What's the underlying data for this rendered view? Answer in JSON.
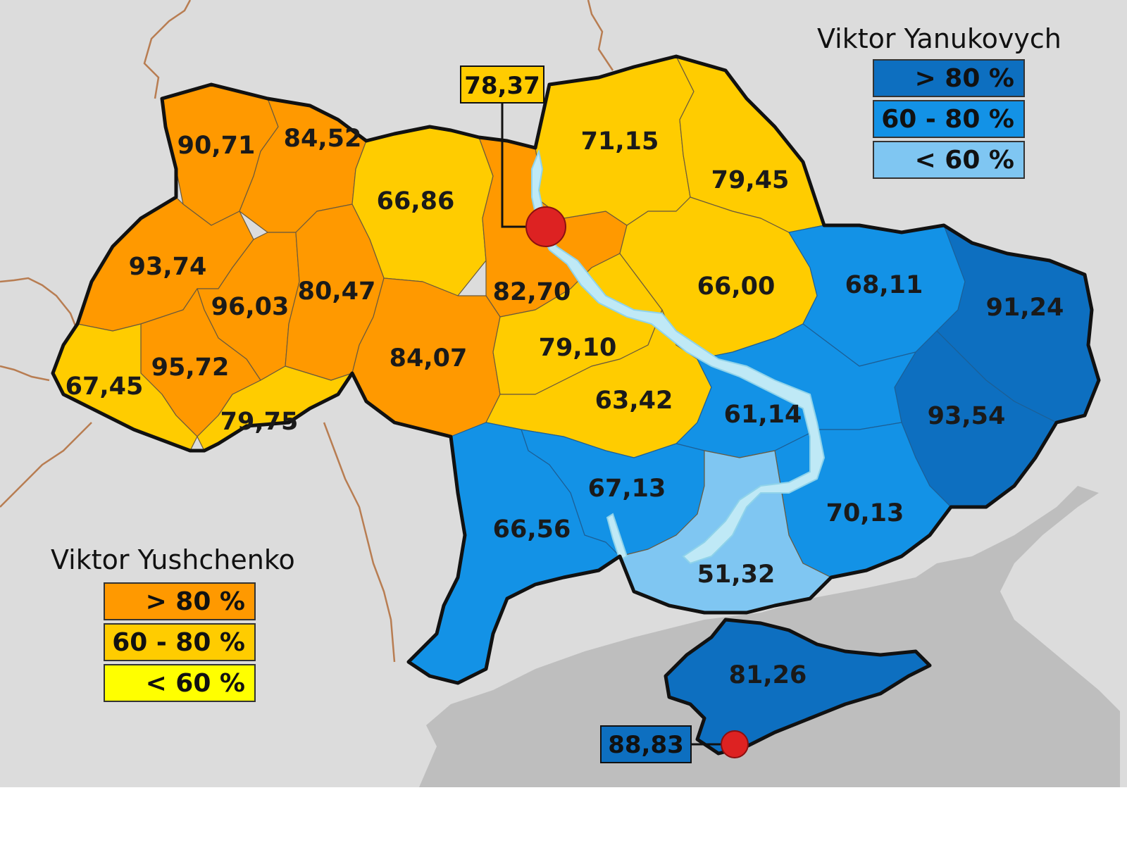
{
  "colors": {
    "background_land": "#dcdcdc",
    "sea": "#bebebe",
    "white_bottom": "#ffffff",
    "yushchenko_gt80": "#ff9900",
    "yushchenko_60_80": "#ffcc00",
    "yushchenko_lt60": "#ffff00",
    "yanukovych_gt80": "#0d6fc0",
    "yanukovych_60_80": "#1392e6",
    "yanukovych_lt60": "#7fc6f2",
    "capital_marker": "#dd2222"
  },
  "legend_yanukovych": {
    "title": "Viktor Yanukovych",
    "items": [
      {
        "label": "> 80 %",
        "color_key": "yanukovych_gt80"
      },
      {
        "label": "60 - 80 %",
        "color_key": "yanukovych_60_80"
      },
      {
        "label": "< 60 %",
        "color_key": "yanukovych_lt60"
      }
    ]
  },
  "legend_yushchenko": {
    "title": "Viktor Yushchenko",
    "items": [
      {
        "label": "> 80 %",
        "color_key": "yushchenko_gt80"
      },
      {
        "label": "60 - 80 %",
        "color_key": "yushchenko_60_80"
      },
      {
        "label": "< 60 %",
        "color_key": "yushchenko_lt60"
      }
    ]
  },
  "callouts": {
    "kyiv_city": {
      "value": "78,37",
      "color_key": "yushchenko_60_80"
    },
    "sevastopol": {
      "value": "88,83",
      "color_key": "yanukovych_gt80"
    }
  },
  "regions": [
    {
      "id": "volyn",
      "value": "90,71",
      "color_key": "yushchenko_gt80"
    },
    {
      "id": "rivne",
      "value": "84,52",
      "color_key": "yushchenko_gt80"
    },
    {
      "id": "zhytomyr",
      "value": "66,86",
      "color_key": "yushchenko_60_80"
    },
    {
      "id": "chernihiv",
      "value": "71,15",
      "color_key": "yushchenko_60_80"
    },
    {
      "id": "sumy",
      "value": "79,45",
      "color_key": "yushchenko_60_80"
    },
    {
      "id": "lviv",
      "value": "93,74",
      "color_key": "yushchenko_gt80"
    },
    {
      "id": "ternopil",
      "value": "96,03",
      "color_key": "yushchenko_gt80"
    },
    {
      "id": "khmelnytskyi",
      "value": "80,47",
      "color_key": "yushchenko_gt80"
    },
    {
      "id": "kyiv-oblast",
      "value": "82,70",
      "color_key": "yushchenko_gt80"
    },
    {
      "id": "poltava",
      "value": "66,00",
      "color_key": "yushchenko_60_80"
    },
    {
      "id": "kharkiv",
      "value": "68,11",
      "color_key": "yanukovych_60_80"
    },
    {
      "id": "luhansk",
      "value": "91,24",
      "color_key": "yanukovych_gt80"
    },
    {
      "id": "ivano-frankivsk",
      "value": "95,72",
      "color_key": "yushchenko_gt80"
    },
    {
      "id": "zakarpattia",
      "value": "67,45",
      "color_key": "yushchenko_60_80"
    },
    {
      "id": "chernivtsi",
      "value": "79,75",
      "color_key": "yushchenko_60_80"
    },
    {
      "id": "vinnytsia",
      "value": "84,07",
      "color_key": "yushchenko_gt80"
    },
    {
      "id": "cherkasy",
      "value": "79,10",
      "color_key": "yushchenko_60_80"
    },
    {
      "id": "kirovohrad",
      "value": "63,42",
      "color_key": "yushchenko_60_80"
    },
    {
      "id": "dnipropetrovsk",
      "value": "61,14",
      "color_key": "yanukovych_60_80"
    },
    {
      "id": "donetsk",
      "value": "93,54",
      "color_key": "yanukovych_gt80"
    },
    {
      "id": "mykolaiv",
      "value": "67,13",
      "color_key": "yanukovych_60_80"
    },
    {
      "id": "odesa",
      "value": "66,56",
      "color_key": "yanukovych_60_80"
    },
    {
      "id": "zaporizhzhia",
      "value": "70,13",
      "color_key": "yanukovych_60_80"
    },
    {
      "id": "kherson",
      "value": "51,32",
      "color_key": "yanukovych_lt60"
    },
    {
      "id": "crimea",
      "value": "81,26",
      "color_key": "yanukovych_gt80"
    }
  ]
}
